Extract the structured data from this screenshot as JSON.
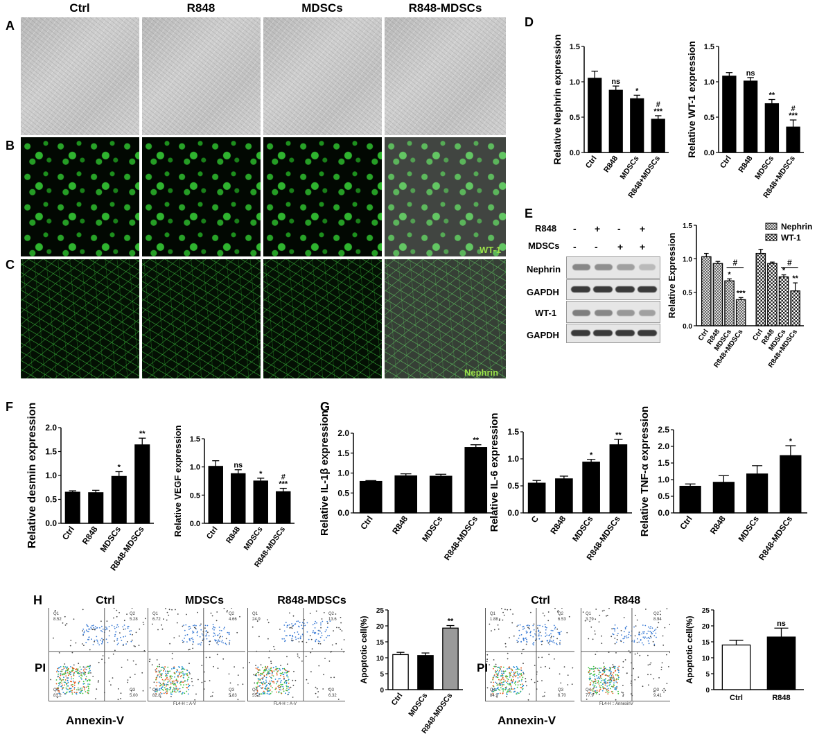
{
  "panels": {
    "A": "A",
    "B": "B",
    "C": "C",
    "D": "D",
    "E": "E",
    "F": "F",
    "G": "G",
    "H": "H"
  },
  "micrograph_columns": [
    "Ctrl",
    "R848",
    "MDSCs",
    "R848-MDSCs"
  ],
  "stain_labels": {
    "wt1": "WT-1",
    "nephrin": "Nephrin"
  },
  "sig_ns": "ns",
  "blot": {
    "rows": [
      "R848",
      "MDSCs",
      "Nephrin",
      "GAPDH",
      "WT-1",
      "GAPDH"
    ],
    "r848_signs": [
      "-",
      "+",
      "-",
      "+"
    ],
    "mdscs_signs": [
      "-",
      "-",
      "+",
      "+"
    ]
  },
  "flow": {
    "titles": [
      "Ctrl",
      "MDSCs",
      "R848-MDSCs",
      "Ctrl",
      "R848"
    ],
    "y_axis": "PI",
    "x_axis": "Annexin-V",
    "quadrant_labels": [
      "Q1",
      "Q2",
      "Q3",
      "Q4"
    ],
    "quadrant_values": [
      [
        "8.52",
        "5.28",
        "5.00",
        "81.2"
      ],
      [
        "6.72",
        "4.66",
        "5.83",
        "82.8"
      ],
      [
        "24.9",
        "13.6",
        "6.32",
        "55.2"
      ],
      [
        "1.88",
        "6.53",
        "6.70",
        "84.9"
      ],
      [
        "3.79",
        "8.94",
        "9.41",
        "77.9"
      ]
    ],
    "axis_captions": [
      "FL4-H :: A-V",
      "FL4-H :: A-V",
      "FL4-H :: AnnexinV"
    ]
  },
  "colors": {
    "bar": "#000000",
    "grey_bar": "#9a9a9a",
    "green": "#2fc02f"
  },
  "chart_data": [
    {
      "id": "D1",
      "type": "bar",
      "ylabel": "Relative Nephrin expression",
      "categories": [
        "Ctrl",
        "R848",
        "MDSCs",
        "R848+MDSCs"
      ],
      "values": [
        1.05,
        0.88,
        0.76,
        0.47
      ],
      "errors": [
        0.1,
        0.06,
        0.05,
        0.05
      ],
      "sig": [
        "",
        "ns",
        "*",
        "#\n***"
      ],
      "ylim": [
        0,
        1.5
      ],
      "ticks": [
        "0.0",
        "0.5",
        "1.0",
        "1.5"
      ]
    },
    {
      "id": "D2",
      "type": "bar",
      "ylabel": "Relative WT-1 expression",
      "categories": [
        "Ctrl",
        "R848",
        "MDSCs",
        "R848+MDSCs"
      ],
      "values": [
        1.08,
        1.01,
        0.69,
        0.36
      ],
      "errors": [
        0.05,
        0.05,
        0.06,
        0.1
      ],
      "sig": [
        "",
        "ns",
        "**",
        "#\n***"
      ],
      "ylim": [
        0,
        1.5
      ],
      "ticks": [
        "0.0",
        "0.5",
        "1.0",
        "1.5"
      ]
    },
    {
      "id": "E",
      "type": "bar",
      "ylabel": "Relative Expression",
      "legend": [
        "Nephrin",
        "WT-1"
      ],
      "categories": [
        "Ctrl",
        "R848",
        "MDSCs",
        "R848+MDSCs",
        "Ctrl",
        "R848",
        "MDSCs",
        "R848+MDSCs"
      ],
      "values": [
        1.03,
        0.93,
        0.67,
        0.39,
        1.08,
        0.93,
        0.73,
        0.52
      ],
      "errors": [
        0.05,
        0.03,
        0.03,
        0.03,
        0.06,
        0.02,
        0.03,
        0.12
      ],
      "sig": [
        "",
        "",
        "*",
        "***",
        "",
        "",
        "*",
        "**"
      ],
      "ylim": [
        0,
        1.5
      ],
      "ticks": [
        "0.0",
        "0.5",
        "1.0",
        "1.5"
      ],
      "bracket": "#"
    },
    {
      "id": "F1",
      "type": "bar",
      "ylabel": "Relative desmin expression",
      "categories": [
        "Ctrl",
        "R848",
        "MDSCs",
        "R848-MDSCs"
      ],
      "values": [
        0.65,
        0.64,
        0.98,
        1.64
      ],
      "errors": [
        0.03,
        0.05,
        0.1,
        0.14
      ],
      "sig": [
        "",
        "",
        "*",
        "**"
      ],
      "ylim": [
        0,
        2.0
      ],
      "ticks": [
        "0.0",
        "0.5",
        "1.0",
        "1.5",
        "2.0"
      ]
    },
    {
      "id": "F2",
      "type": "bar",
      "ylabel": "Relative VEGF expression",
      "categories": [
        "Ctrl",
        "R848",
        "MDSCs",
        "R848-MDSCs"
      ],
      "values": [
        1.01,
        0.88,
        0.75,
        0.56
      ],
      "errors": [
        0.1,
        0.07,
        0.05,
        0.06
      ],
      "sig": [
        "",
        "ns",
        "*",
        "#\n***"
      ],
      "ylim": [
        0,
        1.5
      ],
      "ticks": [
        "0.0",
        "0.5",
        "1.0",
        "1.5"
      ]
    },
    {
      "id": "G1",
      "type": "bar",
      "ylabel": "Relative IL-1β  expression",
      "categories": [
        "Ctrl",
        "R848",
        "MDSCs",
        "R848-MDSCs"
      ],
      "values": [
        0.79,
        0.93,
        0.92,
        1.64
      ],
      "errors": [
        0.02,
        0.05,
        0.05,
        0.07
      ],
      "sig": [
        "",
        "",
        "",
        "**"
      ],
      "ylim": [
        0,
        2.0
      ],
      "ticks": [
        "0.0",
        "0.5",
        "1.0",
        "1.5",
        "2.0"
      ]
    },
    {
      "id": "G2",
      "type": "bar",
      "ylabel": "Relative IL-6 expression",
      "categories": [
        "C",
        "R848",
        "MDSCs",
        "R848-MDSCs"
      ],
      "values": [
        0.55,
        0.63,
        0.94,
        1.26
      ],
      "errors": [
        0.05,
        0.05,
        0.05,
        0.1
      ],
      "sig": [
        "",
        "",
        "*",
        "**"
      ],
      "ylim": [
        0,
        1.5
      ],
      "ticks": [
        "0.0",
        "0.5",
        "1.0",
        "1.5"
      ]
    },
    {
      "id": "G3",
      "type": "bar",
      "ylabel": "Relative TNF-α  expression",
      "categories": [
        "Ctrl",
        "R848",
        "MDSCs",
        "R848-MDSCs"
      ],
      "values": [
        0.8,
        0.92,
        1.17,
        1.72
      ],
      "errors": [
        0.07,
        0.2,
        0.25,
        0.3
      ],
      "sig": [
        "",
        "",
        "",
        "*"
      ],
      "ylim": [
        0,
        2.5
      ],
      "ticks": [
        "0.0",
        "0.5",
        "1.0",
        "1.5",
        "2.0",
        "2.5"
      ]
    },
    {
      "id": "H1",
      "type": "bar",
      "ylabel": "Apoptotic cell(%)",
      "categories": [
        "Ctrl",
        "MDSCs",
        "R848-MDSCs"
      ],
      "values": [
        11.0,
        10.7,
        19.3
      ],
      "errors": [
        0.7,
        0.8,
        0.8
      ],
      "sig": [
        "",
        "",
        "**"
      ],
      "fills": [
        "#ffffff",
        "#000000",
        "#9a9a9a"
      ],
      "ylim": [
        0,
        25
      ],
      "ticks": [
        "0",
        "5",
        "10",
        "15",
        "20",
        "25"
      ]
    },
    {
      "id": "H2",
      "type": "bar",
      "ylabel": "Apoptotic cell(%)",
      "categories": [
        "Ctrl",
        "R848"
      ],
      "values": [
        14.0,
        16.5
      ],
      "errors": [
        1.5,
        2.8
      ],
      "sig": [
        "",
        "ns"
      ],
      "fills": [
        "#ffffff",
        "#000000"
      ],
      "ylim": [
        0,
        25
      ],
      "ticks": [
        "0",
        "5",
        "10",
        "15",
        "20",
        "25"
      ]
    }
  ]
}
